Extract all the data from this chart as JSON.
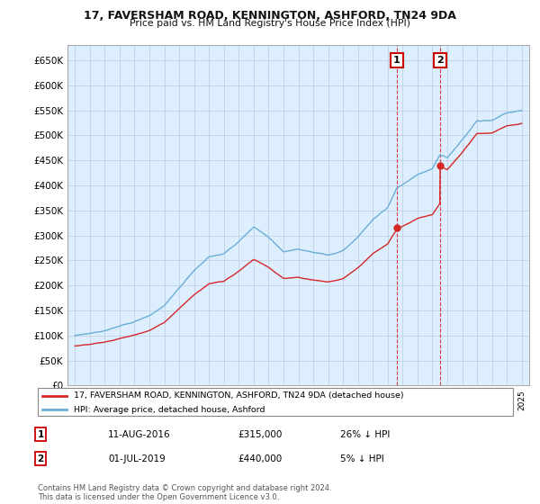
{
  "title": "17, FAVERSHAM ROAD, KENNINGTON, ASHFORD, TN24 9DA",
  "subtitle": "Price paid vs. HM Land Registry's House Price Index (HPI)",
  "ylabel_ticks": [
    "£0",
    "£50K",
    "£100K",
    "£150K",
    "£200K",
    "£250K",
    "£300K",
    "£350K",
    "£400K",
    "£450K",
    "£500K",
    "£550K",
    "£600K",
    "£650K"
  ],
  "ytick_values": [
    0,
    50000,
    100000,
    150000,
    200000,
    250000,
    300000,
    350000,
    400000,
    450000,
    500000,
    550000,
    600000,
    650000
  ],
  "ylim": [
    0,
    680000
  ],
  "xlim_start": 1994.5,
  "xlim_end": 2025.5,
  "hpi_color": "#6baed6",
  "price_color": "#d62728",
  "dashed_color": "#d62728",
  "transaction1_date": 2016.62,
  "transaction1_price": 315000,
  "transaction2_date": 2019.5,
  "transaction2_price": 440000,
  "legend_property": "17, FAVERSHAM ROAD, KENNINGTON, ASHFORD, TN24 9DA (detached house)",
  "legend_hpi": "HPI: Average price, detached house, Ashford",
  "table_row1": [
    "1",
    "11-AUG-2016",
    "£315,000",
    "26% ↓ HPI"
  ],
  "table_row2": [
    "2",
    "01-JUL-2019",
    "£440,000",
    "5% ↓ HPI"
  ],
  "footnote": "Contains HM Land Registry data © Crown copyright and database right 2024.\nThis data is licensed under the Open Government Licence v3.0.",
  "background_color": "#ffffff",
  "plot_bg_color": "#ddeeff",
  "grid_color": "#bbccdd"
}
